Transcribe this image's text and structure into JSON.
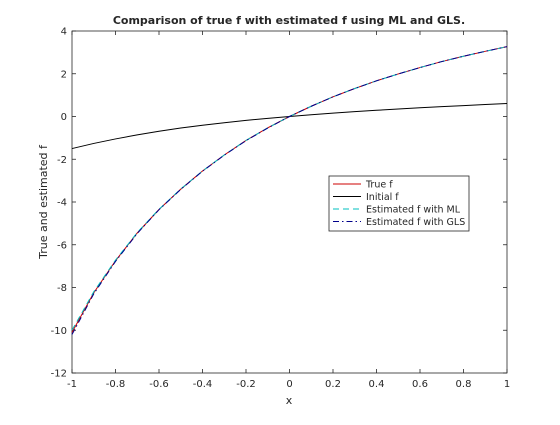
{
  "chart_data": {
    "type": "line",
    "title": "Comparison of true f with estimated f using ML and GLS.",
    "xlabel": "x",
    "ylabel": "True and estimated f",
    "xlim": [
      -1,
      1
    ],
    "ylim": [
      -12,
      4
    ],
    "xticks": [
      -1,
      -0.8,
      -0.6,
      -0.4,
      -0.2,
      0,
      0.2,
      0.4,
      0.6,
      0.8,
      1
    ],
    "xtick_labels": [
      "-1",
      "-0.8",
      "-0.6",
      "-0.4",
      "-0.2",
      "0",
      "0.2",
      "0.4",
      "0.6",
      "0.8",
      "1"
    ],
    "yticks": [
      -12,
      -10,
      -8,
      -6,
      -4,
      -2,
      0,
      2,
      4
    ],
    "ytick_labels": [
      "-12",
      "-10",
      "-8",
      "-6",
      "-4",
      "-2",
      "0",
      "2",
      "4"
    ],
    "grid": false,
    "legend_position": "right-middle",
    "x": [
      -1,
      -0.9,
      -0.8,
      -0.7,
      -0.6,
      -0.5,
      -0.4,
      -0.3,
      -0.2,
      -0.1,
      0,
      0.1,
      0.2,
      0.3,
      0.4,
      0.5,
      0.6,
      0.7,
      0.8,
      0.9,
      1
    ],
    "series": [
      {
        "name": "True f",
        "color": "#cc0000",
        "style": "solid",
        "values": [
          -10.1,
          -8.25,
          -6.75,
          -5.45,
          -4.35,
          -3.4,
          -2.55,
          -1.8,
          -1.12,
          -0.53,
          0,
          0.48,
          0.92,
          1.31,
          1.67,
          1.99,
          2.29,
          2.57,
          2.82,
          3.05,
          3.27
        ]
      },
      {
        "name": "Initial f",
        "color": "#000000",
        "style": "solid",
        "values": [
          -1.5,
          -1.26,
          -1.05,
          -0.86,
          -0.69,
          -0.54,
          -0.41,
          -0.29,
          -0.18,
          -0.09,
          0,
          0.08,
          0.16,
          0.23,
          0.29,
          0.35,
          0.41,
          0.46,
          0.51,
          0.56,
          0.61
        ]
      },
      {
        "name": "Estimated f with ML",
        "color": "#00bfbf",
        "style": "dashed",
        "values": [
          -10.0,
          -8.2,
          -6.72,
          -5.43,
          -4.34,
          -3.39,
          -2.55,
          -1.8,
          -1.12,
          -0.53,
          0,
          0.48,
          0.92,
          1.31,
          1.67,
          1.99,
          2.29,
          2.57,
          2.82,
          3.05,
          3.27
        ]
      },
      {
        "name": "Estimated f with GLS",
        "color": "#00008b",
        "style": "dashdot",
        "values": [
          -10.2,
          -8.3,
          -6.78,
          -5.47,
          -4.36,
          -3.41,
          -2.56,
          -1.81,
          -1.13,
          -0.54,
          0,
          0.48,
          0.92,
          1.31,
          1.67,
          1.99,
          2.29,
          2.57,
          2.82,
          3.05,
          3.27
        ]
      }
    ]
  }
}
